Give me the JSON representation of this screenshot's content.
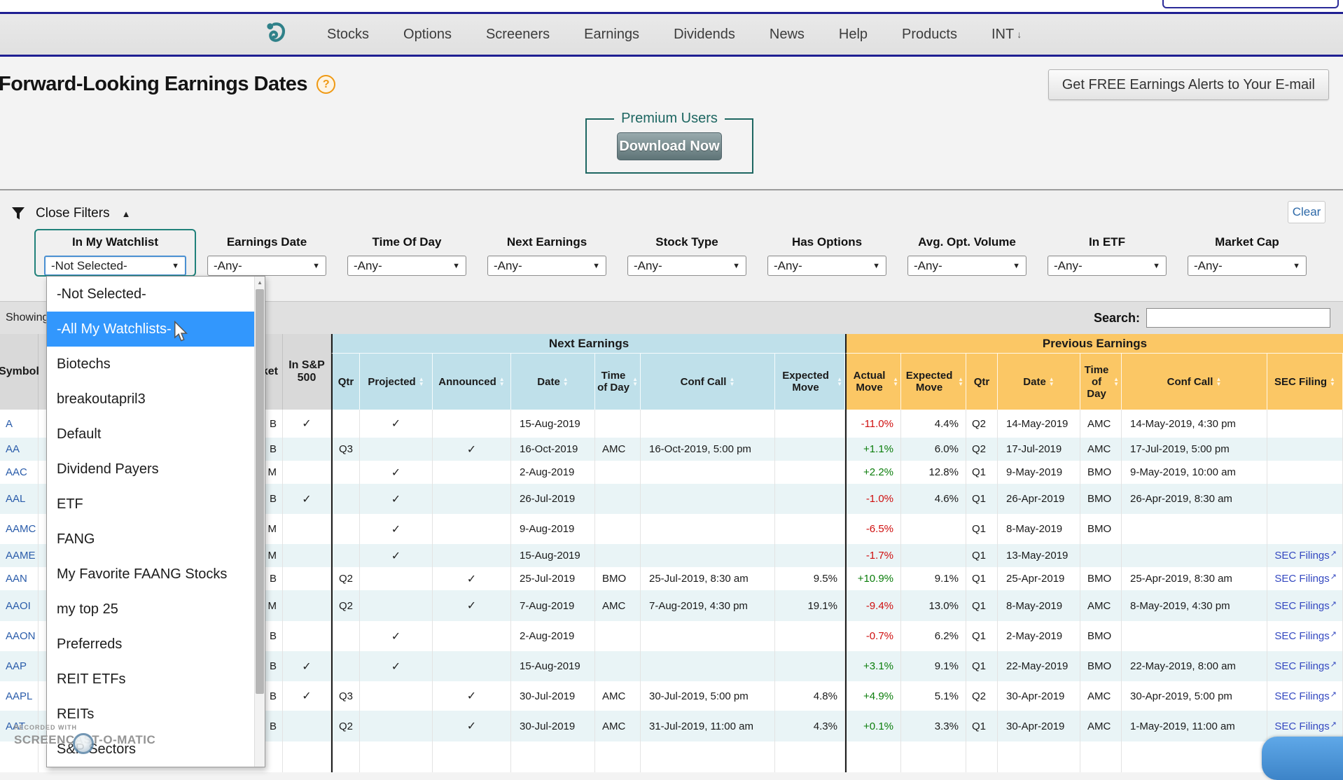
{
  "nav": {
    "items": [
      "Stocks",
      "Options",
      "Screeners",
      "Earnings",
      "Dividends",
      "News",
      "Help",
      "Products"
    ],
    "locale": "INT",
    "locale_arrow": "↓"
  },
  "header": {
    "title": "Forward-Looking Earnings Dates",
    "help_badge": "?",
    "alerts_button": "Get FREE Earnings Alerts to Your E-mail"
  },
  "premium": {
    "legend": "Premium Users",
    "download_button": "Download Now"
  },
  "filters": {
    "toggle_label": "Close Filters",
    "toggle_arrow": "▲",
    "clear_button": "Clear",
    "fields": [
      {
        "label": "In My Watchlist",
        "value": "-Not Selected-",
        "focused": true
      },
      {
        "label": "Earnings Date",
        "value": "-Any-"
      },
      {
        "label": "Time Of Day",
        "value": "-Any-"
      },
      {
        "label": "Next Earnings",
        "value": "-Any-"
      },
      {
        "label": "Stock Type",
        "value": "-Any-"
      },
      {
        "label": "Has Options",
        "value": "-Any-"
      },
      {
        "label": "Avg. Opt. Volume",
        "value": "-Any-"
      },
      {
        "label": "In ETF",
        "value": "-Any-"
      },
      {
        "label": "Market Cap",
        "value": "-Any-"
      }
    ],
    "watchlist_dropdown": {
      "options": [
        "-Not Selected-",
        "-All My Watchlists-",
        "Biotechs",
        "breakoutapril3",
        "Default",
        "Dividend Payers",
        "ETF",
        "FANG",
        "My Favorite FAANG Stocks",
        "my top 25",
        "Preferreds",
        "REIT ETFs",
        "REITs",
        "S&P Sectors"
      ],
      "highlighted_index": 1
    }
  },
  "table": {
    "showing_text": "Showing",
    "search_label": "Search:",
    "search_value": "",
    "group_next": "Next Earnings",
    "group_previous": "Previous Earnings",
    "columns_left": [
      "Symbol",
      "Market",
      "In S&P 500"
    ],
    "columns_next": [
      "Qtr",
      "Projected",
      "Announced",
      "Date",
      "Time of Day",
      "Conf Call",
      "Expected Move"
    ],
    "columns_previous": [
      "Actual Move",
      "Expected Move",
      "Qtr",
      "Date",
      "Time of Day",
      "Conf Call",
      "SEC Filing"
    ],
    "check_glyph": "✓",
    "sec_link_label": "SEC Filings",
    "sec_link_arrow": "↗",
    "rows": [
      {
        "symbol": "A",
        "market": "B",
        "sp500": true,
        "qtr": "",
        "projected": true,
        "announced": false,
        "date": "15-Aug-2019",
        "tod": "",
        "conf": "",
        "exp_move": "",
        "prev_actual": "-11.0%",
        "prev_exp": "4.4%",
        "prev_qtr": "Q2",
        "prev_date": "14-May-2019",
        "prev_tod": "AMC",
        "prev_conf": "14-May-2019, 4:30 pm",
        "sec": false
      },
      {
        "symbol": "AA",
        "market": "B",
        "sp500": false,
        "qtr": "Q3",
        "projected": false,
        "announced": true,
        "date": "16-Oct-2019",
        "tod": "AMC",
        "conf": "16-Oct-2019, 5:00 pm",
        "exp_move": "",
        "prev_actual": "+1.1%",
        "prev_exp": "6.0%",
        "prev_qtr": "Q2",
        "prev_date": "17-Jul-2019",
        "prev_tod": "AMC",
        "prev_conf": "17-Jul-2019, 5:00 pm",
        "sec": false
      },
      {
        "symbol": "AAC",
        "market": "M",
        "sp500": false,
        "qtr": "",
        "projected": true,
        "announced": false,
        "date": "2-Aug-2019",
        "tod": "",
        "conf": "",
        "exp_move": "",
        "prev_actual": "+2.2%",
        "prev_exp": "12.8%",
        "prev_qtr": "Q1",
        "prev_date": "9-May-2019",
        "prev_tod": "BMO",
        "prev_conf": "9-May-2019, 10:00 am",
        "sec": false
      },
      {
        "symbol": "AAL",
        "market": "B",
        "sp500": true,
        "qtr": "",
        "projected": true,
        "announced": false,
        "date": "26-Jul-2019",
        "tod": "",
        "conf": "",
        "exp_move": "",
        "prev_actual": "-1.0%",
        "prev_exp": "4.6%",
        "prev_qtr": "Q1",
        "prev_date": "26-Apr-2019",
        "prev_tod": "BMO",
        "prev_conf": "26-Apr-2019, 8:30 am",
        "sec": false
      },
      {
        "symbol": "AAMC",
        "market": "M",
        "sp500": false,
        "qtr": "",
        "projected": true,
        "announced": false,
        "date": "9-Aug-2019",
        "tod": "",
        "conf": "",
        "exp_move": "",
        "prev_actual": "-6.5%",
        "prev_exp": "",
        "prev_qtr": "Q1",
        "prev_date": "8-May-2019",
        "prev_tod": "BMO",
        "prev_conf": "",
        "sec": false
      },
      {
        "symbol": "AAME",
        "market": "M",
        "sp500": false,
        "qtr": "",
        "projected": true,
        "announced": false,
        "date": "15-Aug-2019",
        "tod": "",
        "conf": "",
        "exp_move": "",
        "prev_actual": "-1.7%",
        "prev_exp": "",
        "prev_qtr": "Q1",
        "prev_date": "13-May-2019",
        "prev_tod": "",
        "prev_conf": "",
        "sec": true
      },
      {
        "symbol": "AAN",
        "market": "B",
        "sp500": false,
        "qtr": "Q2",
        "projected": false,
        "announced": true,
        "date": "25-Jul-2019",
        "tod": "BMO",
        "conf": "25-Jul-2019, 8:30 am",
        "exp_move": "9.5%",
        "prev_actual": "+10.9%",
        "prev_exp": "9.1%",
        "prev_qtr": "Q1",
        "prev_date": "25-Apr-2019",
        "prev_tod": "BMO",
        "prev_conf": "25-Apr-2019, 8:30 am",
        "sec": true
      },
      {
        "symbol": "AAOI",
        "market": "M",
        "sp500": false,
        "qtr": "Q2",
        "projected": false,
        "announced": true,
        "date": "7-Aug-2019",
        "tod": "AMC",
        "conf": "7-Aug-2019, 4:30 pm",
        "exp_move": "19.1%",
        "prev_actual": "-9.4%",
        "prev_exp": "13.0%",
        "prev_qtr": "Q1",
        "prev_date": "8-May-2019",
        "prev_tod": "AMC",
        "prev_conf": "8-May-2019, 4:30 pm",
        "sec": true
      },
      {
        "symbol": "AAON",
        "market": "B",
        "sp500": false,
        "qtr": "",
        "projected": true,
        "announced": false,
        "date": "2-Aug-2019",
        "tod": "",
        "conf": "",
        "exp_move": "",
        "prev_actual": "-0.7%",
        "prev_exp": "6.2%",
        "prev_qtr": "Q1",
        "prev_date": "2-May-2019",
        "prev_tod": "BMO",
        "prev_conf": "",
        "sec": true
      },
      {
        "symbol": "AAP",
        "market": "B",
        "sp500": true,
        "qtr": "",
        "projected": true,
        "announced": false,
        "date": "15-Aug-2019",
        "tod": "",
        "conf": "",
        "exp_move": "",
        "prev_actual": "+3.1%",
        "prev_exp": "9.1%",
        "prev_qtr": "Q1",
        "prev_date": "22-May-2019",
        "prev_tod": "BMO",
        "prev_conf": "22-May-2019, 8:00 am",
        "sec": true
      },
      {
        "symbol": "AAPL",
        "market": "B",
        "sp500": true,
        "qtr": "Q3",
        "projected": false,
        "announced": true,
        "date": "30-Jul-2019",
        "tod": "AMC",
        "conf": "30-Jul-2019, 5:00 pm",
        "exp_move": "4.8%",
        "prev_actual": "+4.9%",
        "prev_exp": "5.1%",
        "prev_qtr": "Q2",
        "prev_date": "30-Apr-2019",
        "prev_tod": "AMC",
        "prev_conf": "30-Apr-2019, 5:00 pm",
        "sec": true
      },
      {
        "symbol": "AAT",
        "market": "B",
        "sp500": false,
        "qtr": "Q2",
        "projected": false,
        "announced": true,
        "date": "30-Jul-2019",
        "tod": "AMC",
        "conf": "31-Jul-2019, 11:00 am",
        "exp_move": "4.3%",
        "prev_actual": "+0.1%",
        "prev_exp": "3.3%",
        "prev_qtr": "Q1",
        "prev_date": "30-Apr-2019",
        "prev_tod": "AMC",
        "prev_conf": "1-May-2019, 11:00 am",
        "sec": true
      }
    ]
  },
  "watermark": {
    "line1": "RECORDED WITH",
    "line2": "SCREENCAST-O-MATIC"
  },
  "colors": {
    "accent_teal": "#1d6661",
    "next_header": "#bfe0ea",
    "previous_header": "#fbc765",
    "positive": "#0b7d0b",
    "negative": "#cf0e0e",
    "link": "#2a5caa",
    "dropdown_highlight": "#3297fd"
  }
}
